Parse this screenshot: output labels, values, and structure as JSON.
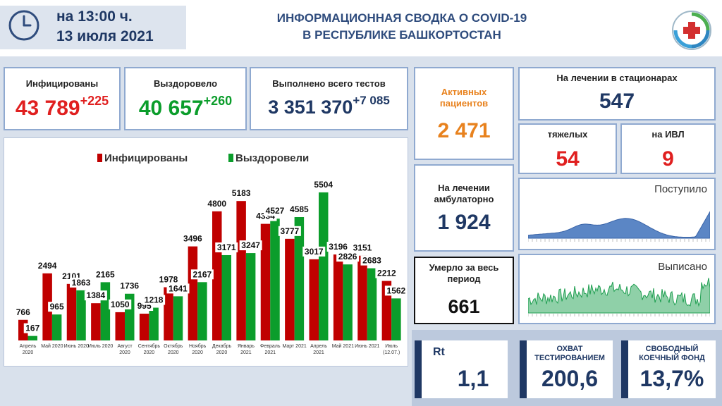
{
  "header": {
    "time_line1": "на 13:00 ч.",
    "time_line2": "13 июля 2021",
    "title_line1": "ИНФОРМАЦИОННАЯ СВОДКА О COVID-19",
    "title_line2": "В РЕСПУБЛИКЕ БАШКОРТОСТАН"
  },
  "cards": {
    "infected": {
      "label": "Инфицированы",
      "value": "43 789",
      "delta": "+225"
    },
    "recovered": {
      "label": "Выздоровело",
      "value": "40 657",
      "delta": "+260"
    },
    "tests": {
      "label": "Выполнено всего тестов",
      "value": "3 351 370",
      "delta": "+7 085"
    },
    "active": {
      "label_line1": "Активных",
      "label_line2": "пациентов",
      "value": "2 471"
    },
    "hospital": {
      "label": "На лечении в стационарах",
      "value": "547"
    },
    "severe": {
      "label": "тяжелых",
      "value": "54"
    },
    "ivl": {
      "label": "на ИВЛ",
      "value": "9"
    },
    "ambulatory": {
      "label_line1": "На лечении",
      "label_line2": "амбулаторно",
      "value": "1 924"
    },
    "died": {
      "label_line1": "Умерло за весь",
      "label_line2": "период",
      "value": "661"
    }
  },
  "sparklines": {
    "admitted": {
      "label": "Поступило"
    },
    "discharged": {
      "label": "Выписано"
    }
  },
  "kpis": {
    "rt": {
      "label": "Rt",
      "value": "1,1"
    },
    "testing": {
      "label_line1": "ОХВАТ",
      "label_line2": "ТЕСТИРОВАНИЕМ",
      "value": "200,6"
    },
    "beds": {
      "label_line1": "СВОБОДНЫЙ",
      "label_line2": "КОЕЧНЫЙ ФОНД",
      "value": "13,7%"
    }
  },
  "colors": {
    "infected": "#c00000",
    "recovered": "#0b9d2b",
    "navy": "#1f3864",
    "active": "#e8821e",
    "spark": "#5b86c5"
  },
  "chart_data": {
    "type": "bar",
    "categories": [
      [
        "Апрель",
        "2020"
      ],
      [
        "Май 2020"
      ],
      [
        "Июнь 2020"
      ],
      [
        "Июль 2020"
      ],
      [
        "Август",
        "2020"
      ],
      [
        "Сентябрь",
        "2020"
      ],
      [
        "Октябрь",
        "2020"
      ],
      [
        "Ноябрь",
        "2020"
      ],
      [
        "Декабрь",
        "2020"
      ],
      [
        "Январь",
        "2021"
      ],
      [
        "Февраль",
        "2021"
      ],
      [
        "Март 2021"
      ],
      [
        "Апрель",
        "2021"
      ],
      [
        "Май 2021"
      ],
      [
        "Июнь 2021"
      ],
      [
        "Июль",
        "(12.07.)"
      ]
    ],
    "series": [
      {
        "name": "Инфицированы",
        "values": [
          766,
          2494,
          2101,
          1384,
          1050,
          995,
          1978,
          3496,
          4800,
          5183,
          4334,
          3777,
          3017,
          3196,
          3151,
          2212
        ]
      },
      {
        "name": "Выздоровели",
        "values": [
          167,
          965,
          1863,
          2165,
          1736,
          1218,
          1641,
          2167,
          3171,
          3247,
          4527,
          4585,
          5504,
          2826,
          2683,
          1562
        ]
      }
    ],
    "legend": "top",
    "ylim": [
      0,
      6000
    ]
  }
}
